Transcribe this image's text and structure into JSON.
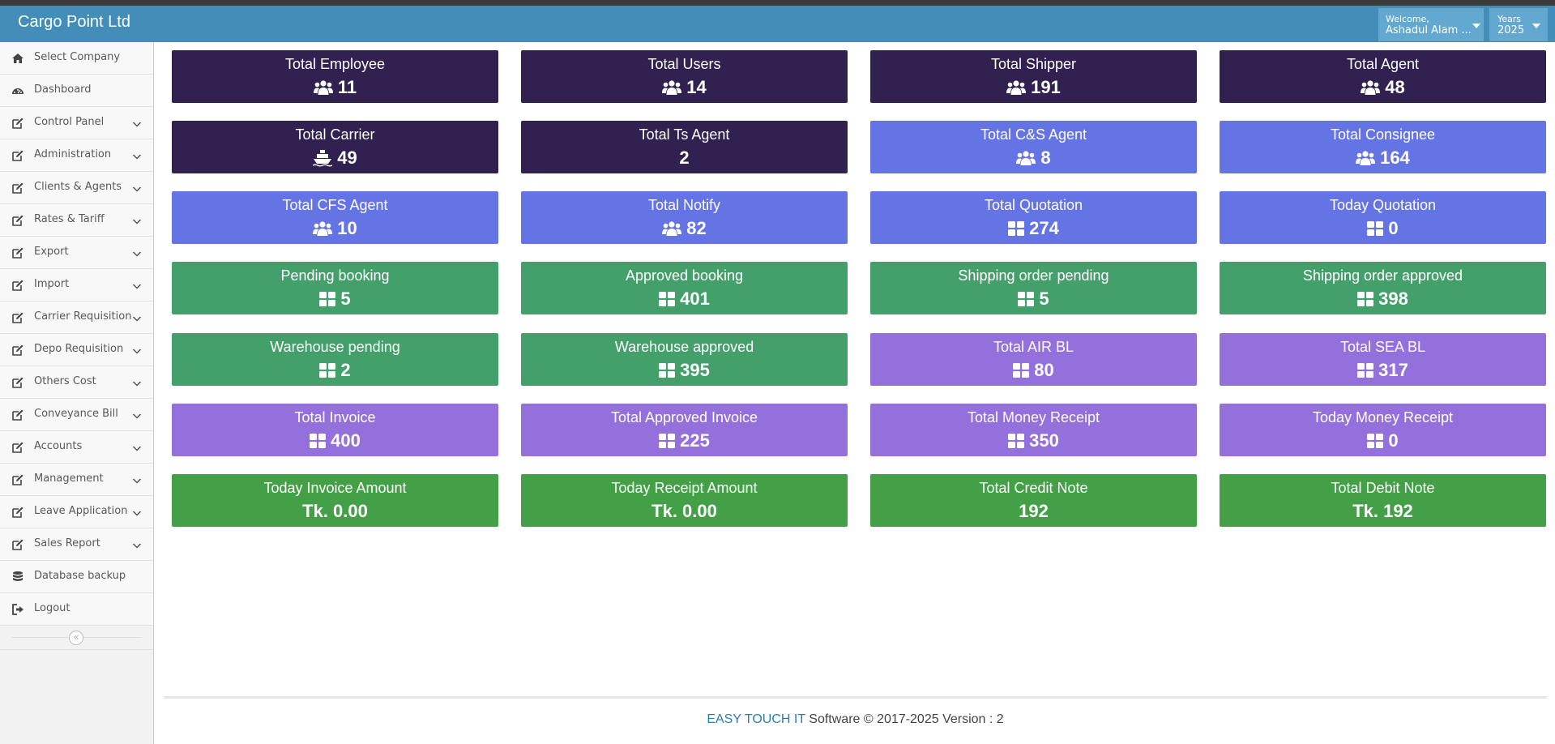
{
  "header": {
    "brand": "Cargo Point Ltd",
    "welcome_label": "Welcome,",
    "user_name": "Ashadul Alam ...",
    "years_label": "Years",
    "year_value": "2025"
  },
  "sidebar": {
    "items": [
      {
        "label": "Select Company",
        "icon": "home-icon",
        "has_submenu": false
      },
      {
        "label": "Dashboard",
        "icon": "dashboard-icon",
        "has_submenu": false
      },
      {
        "label": "Control Panel",
        "icon": "edit-icon",
        "has_submenu": true
      },
      {
        "label": "Administration",
        "icon": "edit-icon",
        "has_submenu": true
      },
      {
        "label": "Clients & Agents",
        "icon": "edit-icon",
        "has_submenu": true
      },
      {
        "label": "Rates & Tariff",
        "icon": "edit-icon",
        "has_submenu": true
      },
      {
        "label": "Export",
        "icon": "edit-icon",
        "has_submenu": true
      },
      {
        "label": "Import",
        "icon": "edit-icon",
        "has_submenu": true
      },
      {
        "label": "Carrier Requisition",
        "icon": "edit-icon",
        "has_submenu": true
      },
      {
        "label": "Depo Requisition",
        "icon": "edit-icon",
        "has_submenu": true
      },
      {
        "label": "Others Cost",
        "icon": "edit-icon",
        "has_submenu": true
      },
      {
        "label": "Conveyance Bill",
        "icon": "edit-icon",
        "has_submenu": true
      },
      {
        "label": "Accounts",
        "icon": "edit-icon",
        "has_submenu": true
      },
      {
        "label": "Management",
        "icon": "edit-icon",
        "has_submenu": true
      },
      {
        "label": "Leave Application",
        "icon": "edit-icon",
        "has_submenu": true
      },
      {
        "label": "Sales Report",
        "icon": "edit-icon",
        "has_submenu": true
      },
      {
        "label": "Database backup",
        "icon": "database-icon",
        "has_submenu": false
      },
      {
        "label": "Logout",
        "icon": "logout-icon",
        "has_submenu": false
      }
    ],
    "collapse_symbol": "«"
  },
  "colors": {
    "navbar": "#438eb9",
    "navy": "#302150",
    "blue": "#6474e5",
    "teal": "#43a06b",
    "purple": "#9370db",
    "green": "#43a047"
  },
  "cards": [
    {
      "title": "Total Employee",
      "value": "11",
      "icon": "users-icon",
      "color": "navy"
    },
    {
      "title": "Total Users",
      "value": "14",
      "icon": "users-icon",
      "color": "navy"
    },
    {
      "title": "Total Shipper",
      "value": "191",
      "icon": "users-icon",
      "color": "navy"
    },
    {
      "title": "Total Agent",
      "value": "48",
      "icon": "users-icon",
      "color": "navy"
    },
    {
      "title": "Total Carrier",
      "value": "49",
      "icon": "ship-icon",
      "color": "navy"
    },
    {
      "title": "Total Ts Agent",
      "value": "2",
      "icon": "",
      "color": "navy"
    },
    {
      "title": "Total C&S Agent",
      "value": "8",
      "icon": "users-icon",
      "color": "blue"
    },
    {
      "title": "Total Consignee",
      "value": "164",
      "icon": "users-icon",
      "color": "blue"
    },
    {
      "title": "Total CFS Agent",
      "value": "10",
      "icon": "users-icon",
      "color": "blue"
    },
    {
      "title": "Total Notify",
      "value": "82",
      "icon": "users-icon",
      "color": "blue"
    },
    {
      "title": "Total Quotation",
      "value": "274",
      "icon": "grid-icon",
      "color": "blue"
    },
    {
      "title": "Today Quotation",
      "value": "0",
      "icon": "grid-icon",
      "color": "blue"
    },
    {
      "title": "Pending booking",
      "value": "5",
      "icon": "grid-icon",
      "color": "teal"
    },
    {
      "title": "Approved booking",
      "value": "401",
      "icon": "grid-icon",
      "color": "teal"
    },
    {
      "title": "Shipping order pending",
      "value": "5",
      "icon": "grid-icon",
      "color": "teal"
    },
    {
      "title": "Shipping order approved",
      "value": "398",
      "icon": "grid-icon",
      "color": "teal"
    },
    {
      "title": "Warehouse pending",
      "value": "2",
      "icon": "grid-icon",
      "color": "teal"
    },
    {
      "title": "Warehouse approved",
      "value": "395",
      "icon": "grid-icon",
      "color": "teal"
    },
    {
      "title": "Total AIR BL",
      "value": "80",
      "icon": "grid-icon",
      "color": "purple"
    },
    {
      "title": "Total SEA BL",
      "value": "317",
      "icon": "grid-icon",
      "color": "purple"
    },
    {
      "title": "Total Invoice",
      "value": "400",
      "icon": "grid-icon",
      "color": "purple"
    },
    {
      "title": "Total Approved Invoice",
      "value": "225",
      "icon": "grid-icon",
      "color": "purple"
    },
    {
      "title": "Total Money Receipt",
      "value": "350",
      "icon": "grid-icon",
      "color": "purple"
    },
    {
      "title": "Today Money Receipt",
      "value": "0",
      "icon": "grid-icon",
      "color": "purple"
    },
    {
      "title": "Today Invoice Amount",
      "value": "Tk. 0.00",
      "icon": "",
      "color": "green"
    },
    {
      "title": "Today Receipt Amount",
      "value": "Tk. 0.00",
      "icon": "",
      "color": "green"
    },
    {
      "title": "Total Credit Note",
      "value": "192",
      "icon": "",
      "color": "green"
    },
    {
      "title": "Total Debit Note",
      "value": "Tk. 192",
      "icon": "",
      "color": "green"
    }
  ],
  "footer": {
    "brand": "EASY TOUCH IT",
    "text": " Software © 2017-2025 Version : 2"
  }
}
